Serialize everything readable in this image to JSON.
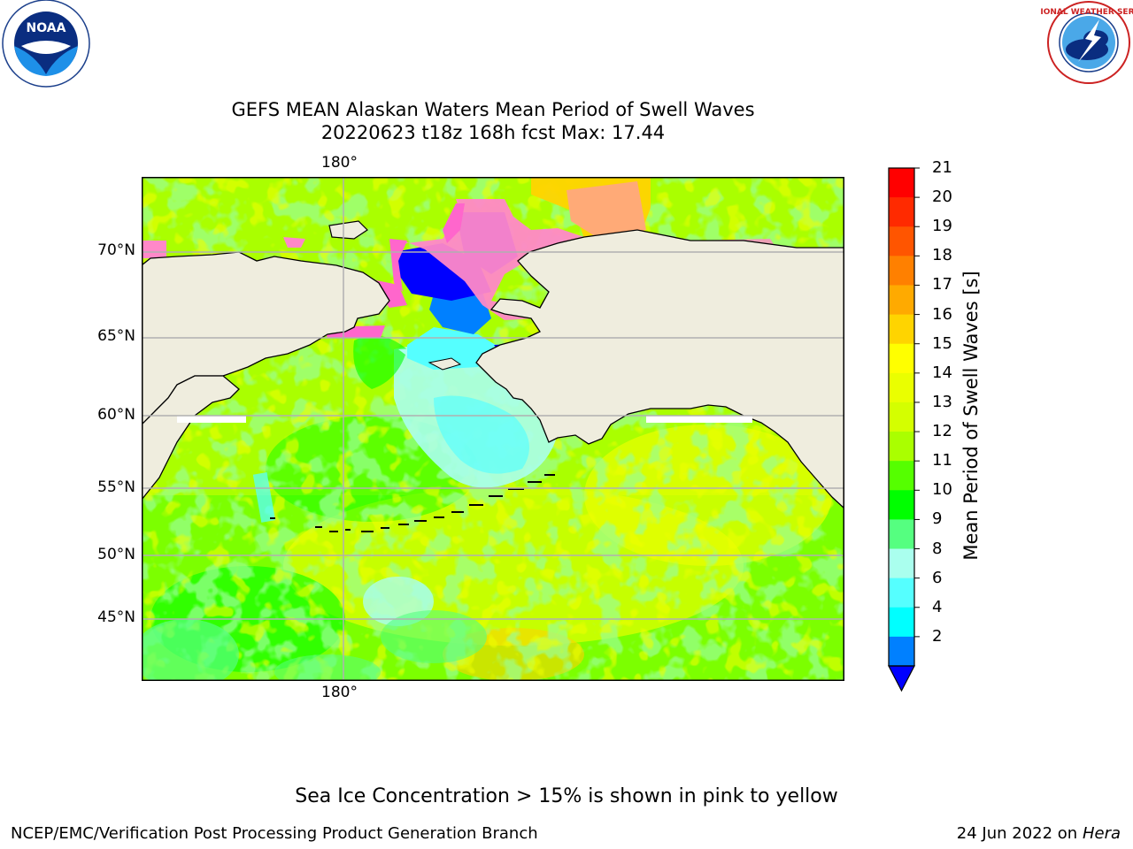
{
  "title": {
    "line1": "GEFS MEAN Alaskan Waters Mean Period of Swell Waves",
    "line2": "20220623 t18z 168h fcst   Max: 17.44"
  },
  "logos": {
    "noaa": {
      "text": "NOAA",
      "ring": "NATIONAL OCEANIC AND ATMOSPHERIC ADMINISTRATION · U.S. DEPARTMENT OF COMMERCE",
      "icon": "noaa-logo-icon"
    },
    "nws": {
      "ring": "NATIONAL WEATHER SERVICE",
      "icon": "nws-logo-icon"
    }
  },
  "map": {
    "lon_labels": {
      "top": "180°",
      "bottom": "180°"
    },
    "lat_labels": [
      "70°N",
      "65°N",
      "60°N",
      "55°N",
      "50°N",
      "45°N"
    ],
    "colors": {
      "land": "#efedde",
      "coast": "#000000",
      "grid": "#b0b0b0",
      "ocean_dominant": "#5cff3a"
    }
  },
  "colorbar": {
    "label": "Mean Period of Swell Waves [s]",
    "ticks": [
      "21",
      "20",
      "19",
      "18",
      "17",
      "16",
      "15",
      "14",
      "13",
      "12",
      "11",
      "10",
      "9",
      "8",
      "6",
      "4",
      "2"
    ],
    "colors": [
      "#ff0000",
      "#ff2a00",
      "#ff5500",
      "#ff8000",
      "#ffaa00",
      "#ffd400",
      "#ffff00",
      "#eaff00",
      "#d4ff00",
      "#aaff00",
      "#55ff00",
      "#00ff00",
      "#55ff80",
      "#aaffee",
      "#55ffff",
      "#00ffff",
      "#0080ff",
      "#0000ff"
    ],
    "extend": "min"
  },
  "footer": {
    "note": "Sea Ice Concentration > 15% is shown in pink to yellow",
    "left": "NCEP/EMC/Verification Post Processing Product Generation Branch",
    "date": "24 Jun 2022 on",
    "machine": "Hera"
  }
}
